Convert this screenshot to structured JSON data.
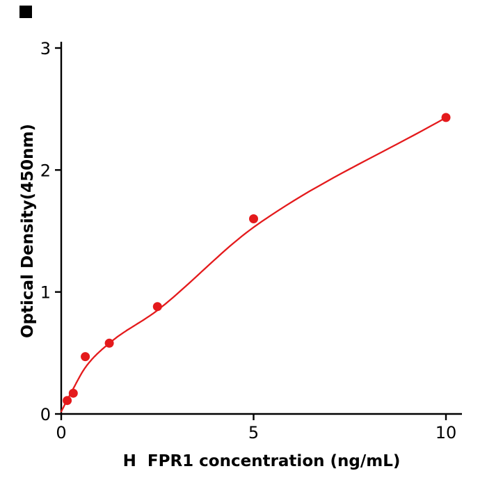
{
  "corner_mark": {
    "color": "#000000"
  },
  "chart_data": {
    "type": "scatter",
    "title": "",
    "xlabel": "H  FPR1 concentration (ng/mL)",
    "ylabel": "Optical Density(450nm)",
    "x": [
      0.156,
      0.313,
      0.625,
      1.25,
      2.5,
      5,
      10
    ],
    "y": [
      0.11,
      0.17,
      0.47,
      0.58,
      0.88,
      1.6,
      2.43
    ],
    "fit_curve": [
      [
        0,
        0.02
      ],
      [
        0.3,
        0.2
      ],
      [
        0.625,
        0.38
      ],
      [
        1.25,
        0.58
      ],
      [
        2.5,
        0.85
      ],
      [
        5,
        1.53
      ],
      [
        10,
        2.43
      ]
    ],
    "x_ticks": [
      0,
      5,
      10
    ],
    "y_ticks": [
      0,
      1,
      2,
      3
    ],
    "xlim": [
      0,
      10.4
    ],
    "ylim": [
      0,
      3
    ],
    "grid": false,
    "legend_position": "none",
    "point_color": "#e41a1c",
    "line_color": "#e41a1c",
    "axis_color": "#000000"
  }
}
